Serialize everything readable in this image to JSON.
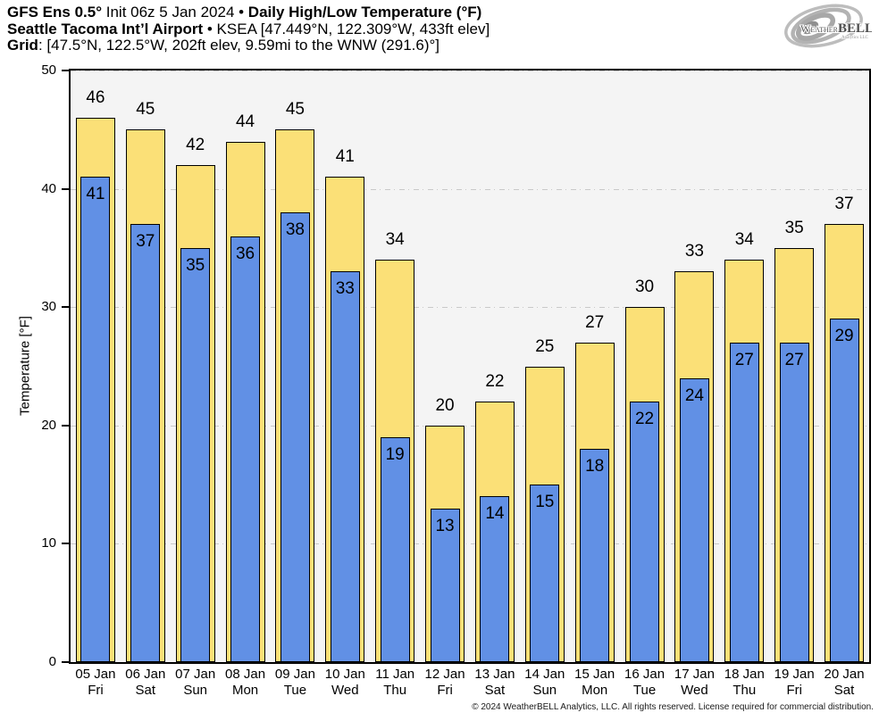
{
  "header": {
    "line1": {
      "bold1": "GFS Ens 0.5° ",
      "regular1": "Init 06z 5 Jan 2024 • ",
      "bold2": "Daily High/Low Temperature (°F)"
    },
    "line2": {
      "bold1": "Seattle Tacoma Int’l Airport",
      "regular1": " • KSEA [47.449°N, 122.309°W, 433ft elev]"
    },
    "line3": {
      "bold1": "Grid",
      "regular1": ": [47.5°N, 122.5°W, 202ft elev, 9.59mi to the WNW (291.6)°]"
    }
  },
  "logo": {
    "brand_part1": "Weather",
    "brand_part2": "BELL",
    "brand_sub": "Analytics LLC"
  },
  "chart_data": {
    "type": "bar",
    "title": "GFS Ens 0.5° Init 06z 5 Jan 2024 • Daily High/Low Temperature (°F)",
    "subtitle": "Seattle Tacoma Int’l Airport • KSEA",
    "ylabel": "Temperature [°F]",
    "ylim": [
      0,
      50
    ],
    "yticks": [
      0,
      10,
      20,
      30,
      40,
      50
    ],
    "grid": "horizontal-dashed",
    "legend_position": "none",
    "categories": [
      "05 Jan",
      "06 Jan",
      "07 Jan",
      "08 Jan",
      "09 Jan",
      "10 Jan",
      "11 Jan",
      "12 Jan",
      "13 Jan",
      "14 Jan",
      "15 Jan",
      "16 Jan",
      "17 Jan",
      "18 Jan",
      "19 Jan",
      "20 Jan"
    ],
    "day_labels": [
      "Fri",
      "Sat",
      "Sun",
      "Mon",
      "Tue",
      "Wed",
      "Thu",
      "Fri",
      "Sat",
      "Sun",
      "Mon",
      "Tue",
      "Wed",
      "Thu",
      "Fri",
      "Sat"
    ],
    "series": [
      {
        "name": "Daily High",
        "color": "#FBE077",
        "values": [
          46,
          45,
          42,
          44,
          45,
          41,
          34,
          20,
          22,
          25,
          27,
          30,
          33,
          34,
          35,
          37
        ]
      },
      {
        "name": "Daily Low",
        "color": "#6190E5",
        "values": [
          41,
          37,
          35,
          36,
          38,
          33,
          19,
          13,
          14,
          15,
          18,
          22,
          24,
          27,
          27,
          29
        ]
      }
    ]
  },
  "colors": {
    "plot_background": "#F4F4F4",
    "gridline": "#C9C9C9",
    "bar_border": "#000000",
    "high_bar": "#FBE077",
    "low_bar": "#6190E5"
  },
  "footer": {
    "copyright": "© 2024 WeatherBELL Analytics, LLC. All rights reserved. License required for commercial distribution."
  }
}
